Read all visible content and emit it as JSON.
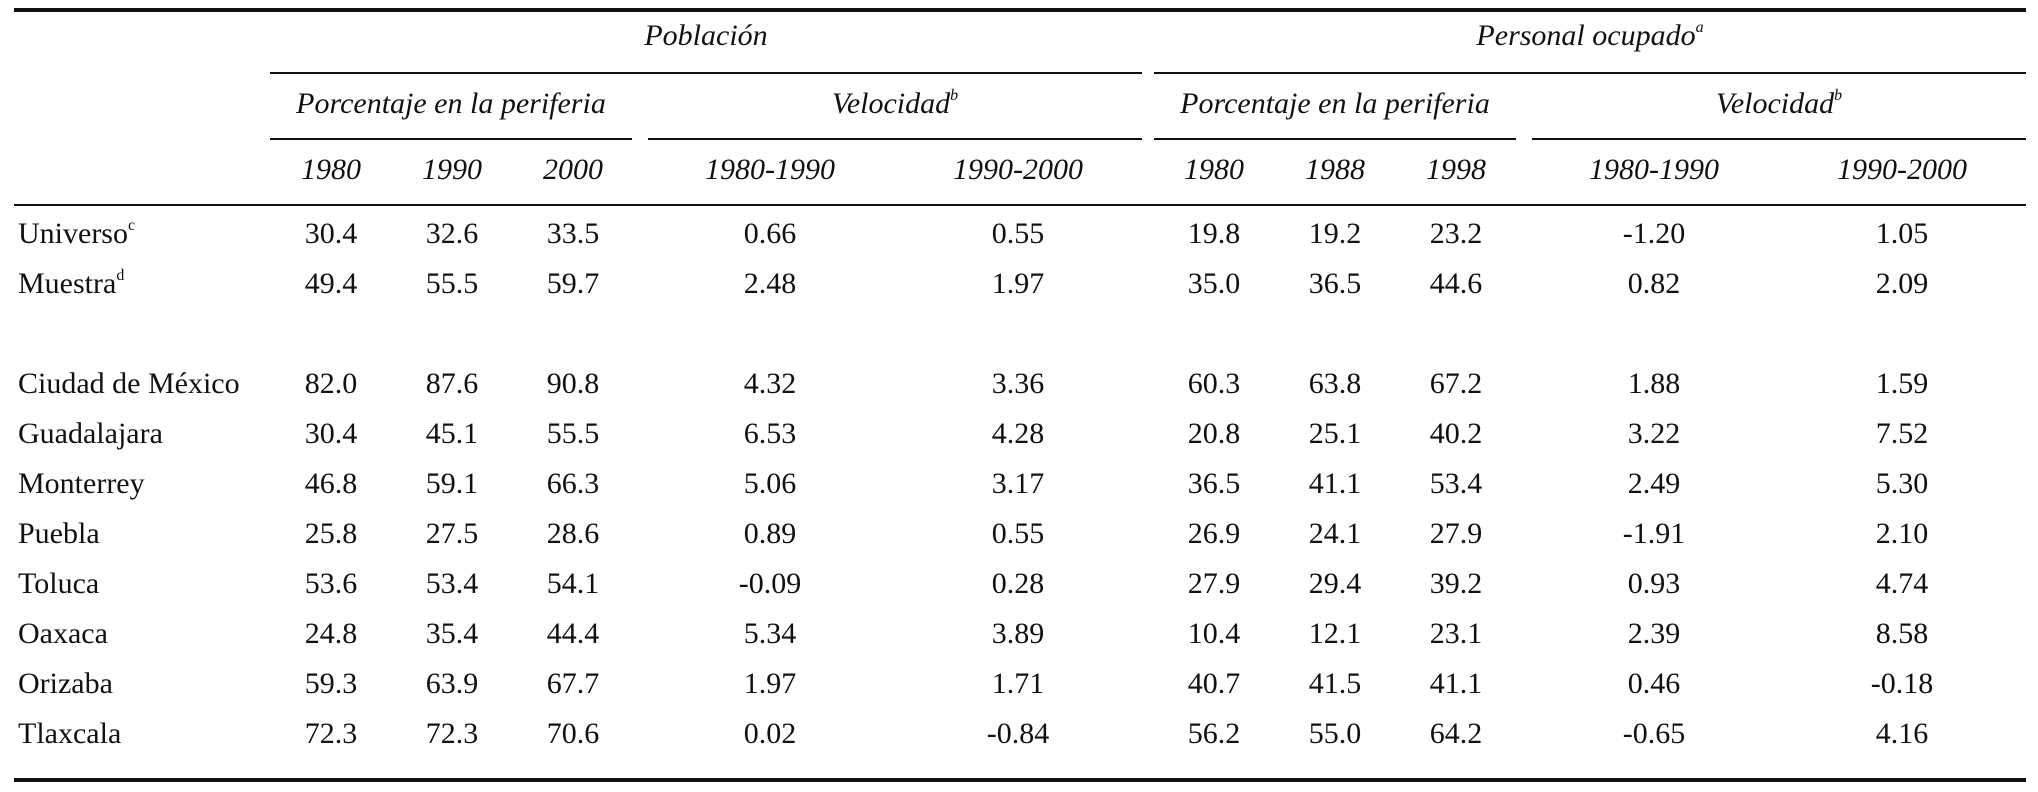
{
  "header": {
    "group_poblacion": "Población",
    "group_personal": "Personal ocupado",
    "group_personal_note": "a",
    "sub_porcentaje": "Porcentaje en la periferia",
    "sub_velocidad": "Velocidad",
    "sub_velocidad_note": "b",
    "pob_years": [
      "1980",
      "1990",
      "2000"
    ],
    "pob_vel_periods": [
      "1980-1990",
      "1990-2000"
    ],
    "per_years": [
      "1980",
      "1988",
      "1998"
    ],
    "per_vel_periods": [
      "1980-1990",
      "1990-2000"
    ]
  },
  "rows": [
    {
      "label": "Universo",
      "note": "c",
      "values": [
        "30.4",
        "32.6",
        "33.5",
        "0.66",
        "0.55",
        "19.8",
        "19.2",
        "23.2",
        "-1.20",
        "1.05"
      ]
    },
    {
      "label": "Muestra",
      "note": "d",
      "values": [
        "49.4",
        "55.5",
        "59.7",
        "2.48",
        "1.97",
        "35.0",
        "36.5",
        "44.6",
        "0.82",
        "2.09"
      ]
    },
    {
      "label": "Ciudad de México",
      "note": "",
      "values": [
        "82.0",
        "87.6",
        "90.8",
        "4.32",
        "3.36",
        "60.3",
        "63.8",
        "67.2",
        "1.88",
        "1.59"
      ]
    },
    {
      "label": "Guadalajara",
      "note": "",
      "values": [
        "30.4",
        "45.1",
        "55.5",
        "6.53",
        "4.28",
        "20.8",
        "25.1",
        "40.2",
        "3.22",
        "7.52"
      ]
    },
    {
      "label": "Monterrey",
      "note": "",
      "values": [
        "46.8",
        "59.1",
        "66.3",
        "5.06",
        "3.17",
        "36.5",
        "41.1",
        "53.4",
        "2.49",
        "5.30"
      ]
    },
    {
      "label": "Puebla",
      "note": "",
      "values": [
        "25.8",
        "27.5",
        "28.6",
        "0.89",
        "0.55",
        "26.9",
        "24.1",
        "27.9",
        "-1.91",
        "2.10"
      ]
    },
    {
      "label": "Toluca",
      "note": "",
      "values": [
        "53.6",
        "53.4",
        "54.1",
        "-0.09",
        "0.28",
        "27.9",
        "29.4",
        "39.2",
        "0.93",
        "4.74"
      ]
    },
    {
      "label": "Oaxaca",
      "note": "",
      "values": [
        "24.8",
        "35.4",
        "44.4",
        "5.34",
        "3.89",
        "10.4",
        "12.1",
        "23.1",
        "2.39",
        "8.58"
      ]
    },
    {
      "label": "Orizaba",
      "note": "",
      "values": [
        "59.3",
        "63.9",
        "67.7",
        "1.97",
        "1.71",
        "40.7",
        "41.5",
        "41.1",
        "0.46",
        "-0.18"
      ]
    },
    {
      "label": "Tlaxcala",
      "note": "",
      "values": [
        "72.3",
        "72.3",
        "70.6",
        "0.02",
        "-0.84",
        "56.2",
        "55.0",
        "64.2",
        "-0.65",
        "4.16"
      ]
    }
  ]
}
